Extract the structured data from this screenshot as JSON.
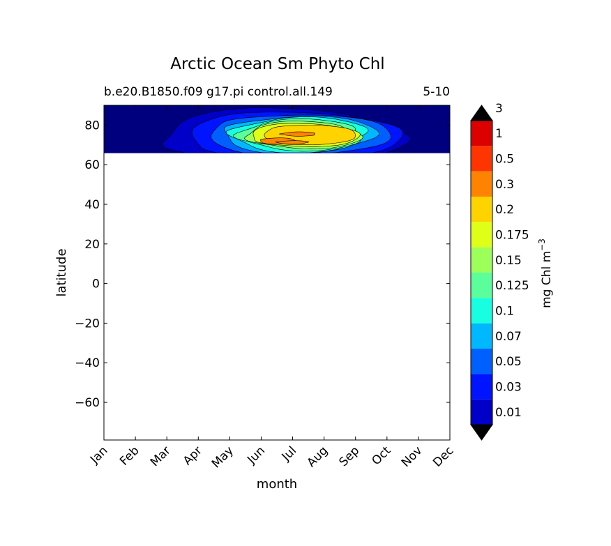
{
  "chart_data": {
    "type": "heatmap",
    "title": "Arctic Ocean Sm Phyto Chl",
    "subtitle_left": "b.e20.B1850.f09 g17.pi control.all.149",
    "subtitle_right": "5-10",
    "xlabel": "month",
    "ylabel": "latitude",
    "colorbar_label": "mg Chl m",
    "colorbar_label_exponent": "−3",
    "x_tick_labels": [
      "Jan",
      "Feb",
      "Mar",
      "Apr",
      "May",
      "Jun",
      "Jul",
      "Aug",
      "Sep",
      "Oct",
      "Nov",
      "Dec"
    ],
    "y_ticks": [
      80,
      60,
      40,
      20,
      0,
      -20,
      -40,
      -60
    ],
    "y_tick_labels": [
      "80",
      "60",
      "40",
      "20",
      "0",
      "−20",
      "−40",
      "−60"
    ],
    "xlim": [
      0,
      11
    ],
    "ylim": [
      -79,
      90
    ],
    "data_lat_range": [
      66,
      90
    ],
    "grid": false,
    "levels": [
      0.01,
      0.03,
      0.05,
      0.07,
      0.1,
      0.125,
      0.15,
      0.175,
      0.2,
      0.3,
      0.5,
      1,
      3
    ],
    "level_labels": [
      "0.01",
      "0.03",
      "0.05",
      "0.07",
      "0.1",
      "0.125",
      "0.15",
      "0.175",
      "0.2",
      "0.3",
      "0.5",
      "1",
      "3"
    ],
    "colors": [
      "#00007f",
      "#0000c8",
      "#0014ff",
      "#0060ff",
      "#00b8ff",
      "#17ffe0",
      "#5aff9c",
      "#9cff5a",
      "#e0ff17",
      "#ffd300",
      "#ff8300",
      "#ff3500",
      "#dc0000",
      "#7f0000"
    ],
    "contour_regions": [
      {
        "level_index": 1,
        "center_month": 5.7,
        "center_lat": 74.5,
        "half_width_months": 3.8,
        "half_height_lat": 14.0
      },
      {
        "level_index": 2,
        "center_month": 6.0,
        "center_lat": 75.0,
        "half_width_months": 3.35,
        "half_height_lat": 12.5
      },
      {
        "level_index": 3,
        "center_month": 6.15,
        "center_lat": 75.0,
        "half_width_months": 2.85,
        "half_height_lat": 11.0
      },
      {
        "level_index": 4,
        "center_month": 6.2,
        "center_lat": 75.0,
        "half_width_months": 2.4,
        "half_height_lat": 9.5
      },
      {
        "level_index": 5,
        "center_month": 6.25,
        "center_lat": 75.0,
        "half_width_months": 2.15,
        "half_height_lat": 8.5
      },
      {
        "level_index": 6,
        "center_month": 6.3,
        "center_lat": 75.0,
        "half_width_months": 1.95,
        "half_height_lat": 7.5
      },
      {
        "level_index": 7,
        "center_month": 6.35,
        "center_lat": 75.0,
        "half_width_months": 1.8,
        "half_height_lat": 6.8
      },
      {
        "level_index": 8,
        "center_month": 6.35,
        "center_lat": 75.0,
        "half_width_months": 1.7,
        "half_height_lat": 6.2
      },
      {
        "level_index": 9,
        "center_month": 6.5,
        "center_lat": 75.0,
        "half_width_months": 1.45,
        "half_height_lat": 5.5
      },
      {
        "level_index": 10,
        "center_month": 5.5,
        "center_lat": 72.0,
        "half_width_months": 0.55,
        "half_height_lat": 1.6
      },
      {
        "level_index": 10,
        "center_month": 6.0,
        "center_lat": 71.3,
        "half_width_months": 0.5,
        "half_height_lat": 0.8
      },
      {
        "level_index": 10,
        "center_month": 6.2,
        "center_lat": 75.5,
        "half_width_months": 0.55,
        "half_height_lat": 1.0
      }
    ]
  }
}
